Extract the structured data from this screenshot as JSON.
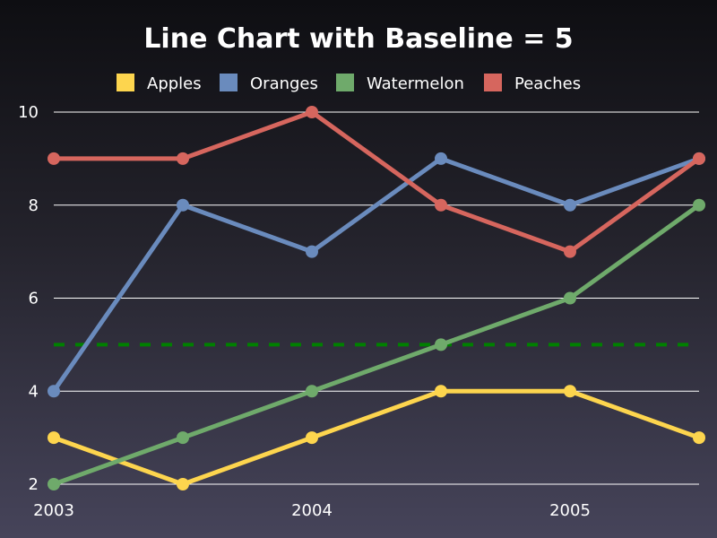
{
  "chart_data": {
    "type": "line",
    "title": "Line Chart with Baseline = 5",
    "x": [
      "2003",
      "2003.5",
      "2004",
      "2004.5",
      "2005",
      "2005.5"
    ],
    "x_tick_labels": [
      "2003",
      "2004",
      "2005"
    ],
    "y_tick_labels": [
      "2",
      "4",
      "6",
      "8",
      "10"
    ],
    "ylim": [
      2,
      10
    ],
    "grid": "horizontal",
    "legend_position": "top",
    "series": [
      {
        "name": "Apples",
        "color": "#fdd54e",
        "values": [
          3,
          2,
          3,
          4,
          4,
          3
        ]
      },
      {
        "name": "Oranges",
        "color": "#6a8bbd",
        "values": [
          4,
          8,
          7,
          9,
          8,
          9
        ]
      },
      {
        "name": "Watermelon",
        "color": "#6faa6b",
        "values": [
          2,
          3,
          4,
          5,
          6,
          8
        ]
      },
      {
        "name": "Peaches",
        "color": "#d6665e",
        "values": [
          9,
          9,
          10,
          8,
          7,
          9
        ]
      }
    ],
    "baseline": {
      "value": 5,
      "color": "#008000",
      "style": "dashed"
    }
  }
}
